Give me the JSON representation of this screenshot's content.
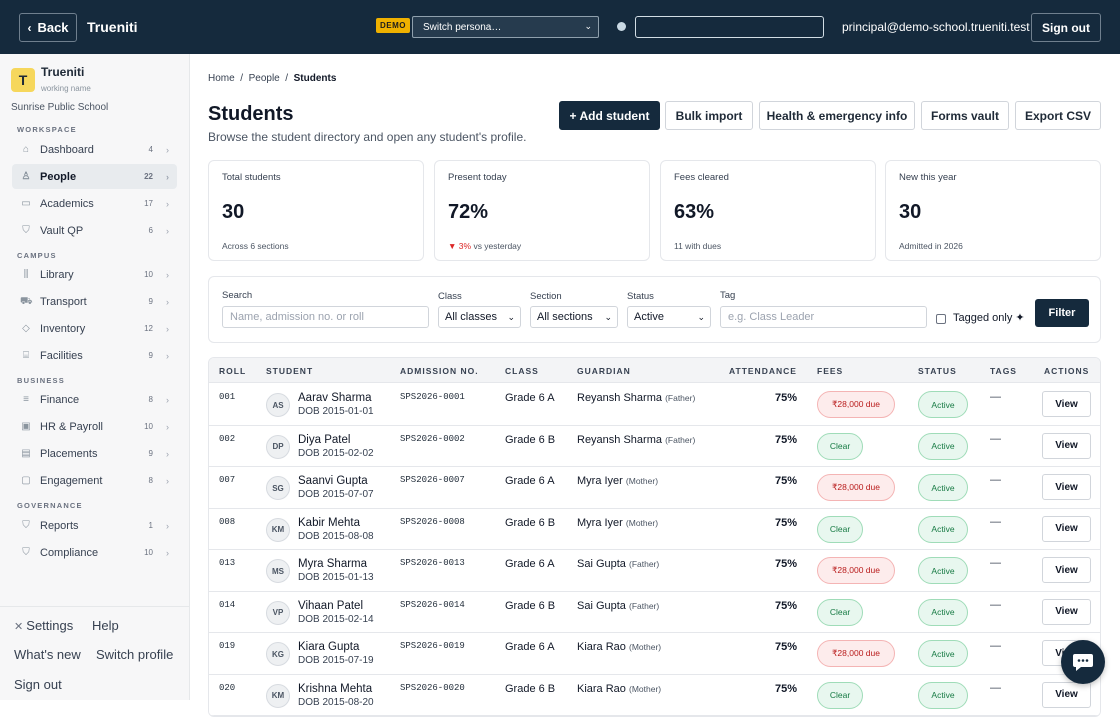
{
  "topbar": {
    "back_label": "Back",
    "brand": "Trueniti",
    "demo_badge": "DEMO",
    "persona_select": "Switch persona…",
    "user_email": "principal@demo-school.trueniti.test",
    "signout_label": "Sign out"
  },
  "sidebar": {
    "org_name": "Trueniti",
    "org_sub": "working name",
    "school": "Sunrise Public School",
    "logo_letter": "T",
    "sections": {
      "workspace": "WORKSPACE",
      "campus": "CAMPUS",
      "business": "BUSINESS",
      "governance": "GOVERNANCE"
    },
    "items": [
      {
        "label": "Dashboard",
        "count": "4",
        "icon": "home-icon"
      },
      {
        "label": "People",
        "count": "22",
        "icon": "person-icon"
      },
      {
        "label": "Academics",
        "count": "17",
        "icon": "book-icon"
      },
      {
        "label": "Vault QP",
        "count": "6",
        "icon": "shield-icon"
      },
      {
        "label": "Library",
        "count": "10",
        "icon": "library-icon"
      },
      {
        "label": "Transport",
        "count": "9",
        "icon": "bus-icon"
      },
      {
        "label": "Inventory",
        "count": "12",
        "icon": "box-icon"
      },
      {
        "label": "Facilities",
        "count": "9",
        "icon": "building-icon"
      },
      {
        "label": "Finance",
        "count": "8",
        "icon": "finance-icon"
      },
      {
        "label": "HR & Payroll",
        "count": "10",
        "icon": "id-card-icon"
      },
      {
        "label": "Placements",
        "count": "9",
        "icon": "briefcase-icon"
      },
      {
        "label": "Engagement",
        "count": "8",
        "icon": "chat-icon"
      },
      {
        "label": "Reports",
        "count": "1",
        "icon": "shield-icon"
      },
      {
        "label": "Compliance",
        "count": "10",
        "icon": "shield-icon"
      }
    ],
    "bottom": {
      "settings": "Settings",
      "help": "Help",
      "whats_new": "What's new",
      "switch_profile": "Switch profile",
      "signout": "Sign out"
    }
  },
  "main": {
    "breadcrumb": {
      "home": "Home",
      "people": "People",
      "current": "Students"
    },
    "title": "Students",
    "subtitle": "Browse the student directory and open any student's profile.",
    "actions": {
      "add": "+ Add student",
      "bulk": "Bulk import",
      "health": "Health & emergency info",
      "forms": "Forms vault",
      "export": "Export CSV"
    },
    "cards": [
      {
        "label": "Total students",
        "value": "30",
        "note": "Across 6 sections"
      },
      {
        "label": "Present today",
        "value": "72%",
        "delta": "▼ 3%",
        "note": "vs yesterday"
      },
      {
        "label": "Fees cleared",
        "value": "63%",
        "note": "11 with dues"
      },
      {
        "label": "New this year",
        "value": "30",
        "note": "Admitted in 2026"
      }
    ],
    "filters": {
      "search_label": "Search",
      "search_placeholder": "Name, admission no. or roll",
      "class_label": "Class",
      "class_value": "All classes",
      "section_label": "Section",
      "section_value": "All sections",
      "status_label": "Status",
      "status_value": "Active",
      "tag_label": "Tag",
      "tag_placeholder": "e.g. Class Leader",
      "tagged_only": "Tagged only ✦",
      "filter_button": "Filter"
    },
    "table": {
      "headers": [
        "ROLL",
        "STUDENT",
        "ADMISSION NO.",
        "CLASS",
        "GUARDIAN",
        "ATTENDANCE",
        "FEES",
        "STATUS",
        "TAGS",
        "ACTIONS"
      ],
      "rows": [
        {
          "roll": "001",
          "initials": "AS",
          "name": "Aarav Sharma",
          "dob": "DOB 2015-01-01",
          "adm": "SPS2026-0001",
          "class": "Grade 6 A",
          "guardian": "Reyansh Sharma",
          "rel": "(Father)",
          "attendance": "75%",
          "fees": "₹28,000 due",
          "status": "Active",
          "tags": "—",
          "action": "View"
        },
        {
          "roll": "002",
          "initials": "DP",
          "name": "Diya Patel",
          "dob": "DOB 2015-02-02",
          "adm": "SPS2026-0002",
          "class": "Grade 6 B",
          "guardian": "Reyansh Sharma",
          "rel": "(Father)",
          "attendance": "75%",
          "fees": "Clear",
          "status": "Active",
          "tags": "—",
          "action": "View"
        },
        {
          "roll": "007",
          "initials": "SG",
          "name": "Saanvi Gupta",
          "dob": "DOB 2015-07-07",
          "adm": "SPS2026-0007",
          "class": "Grade 6 A",
          "guardian": "Myra Iyer",
          "rel": "(Mother)",
          "attendance": "75%",
          "fees": "₹28,000 due",
          "status": "Active",
          "tags": "—",
          "action": "View"
        },
        {
          "roll": "008",
          "initials": "KM",
          "name": "Kabir Mehta",
          "dob": "DOB 2015-08-08",
          "adm": "SPS2026-0008",
          "class": "Grade 6 B",
          "guardian": "Myra Iyer",
          "rel": "(Mother)",
          "attendance": "75%",
          "fees": "Clear",
          "status": "Active",
          "tags": "—",
          "action": "View"
        },
        {
          "roll": "013",
          "initials": "MS",
          "name": "Myra Sharma",
          "dob": "DOB 2015-01-13",
          "adm": "SPS2026-0013",
          "class": "Grade 6 A",
          "guardian": "Sai Gupta",
          "rel": "(Father)",
          "attendance": "75%",
          "fees": "₹28,000 due",
          "status": "Active",
          "tags": "—",
          "action": "View"
        },
        {
          "roll": "014",
          "initials": "VP",
          "name": "Vihaan Patel",
          "dob": "DOB 2015-02-14",
          "adm": "SPS2026-0014",
          "class": "Grade 6 B",
          "guardian": "Sai Gupta",
          "rel": "(Father)",
          "attendance": "75%",
          "fees": "Clear",
          "status": "Active",
          "tags": "—",
          "action": "View"
        },
        {
          "roll": "019",
          "initials": "KG",
          "name": "Kiara Gupta",
          "dob": "DOB 2015-07-19",
          "adm": "SPS2026-0019",
          "class": "Grade 6 A",
          "guardian": "Kiara Rao",
          "rel": "(Mother)",
          "attendance": "75%",
          "fees": "₹28,000 due",
          "status": "Active",
          "tags": "—",
          "action": "View"
        },
        {
          "roll": "020",
          "initials": "KM",
          "name": "Krishna Mehta",
          "dob": "DOB 2015-08-20",
          "adm": "SPS2026-0020",
          "class": "Grade 6 B",
          "guardian": "Kiara Rao",
          "rel": "(Mother)",
          "attendance": "75%",
          "fees": "Clear",
          "status": "Active",
          "tags": "—",
          "action": "View"
        }
      ]
    }
  },
  "colors": {
    "navy": "#152a3d",
    "accent_yellow": "#efb100",
    "due_red": "#b91c1c",
    "ok_green": "#167a43"
  }
}
